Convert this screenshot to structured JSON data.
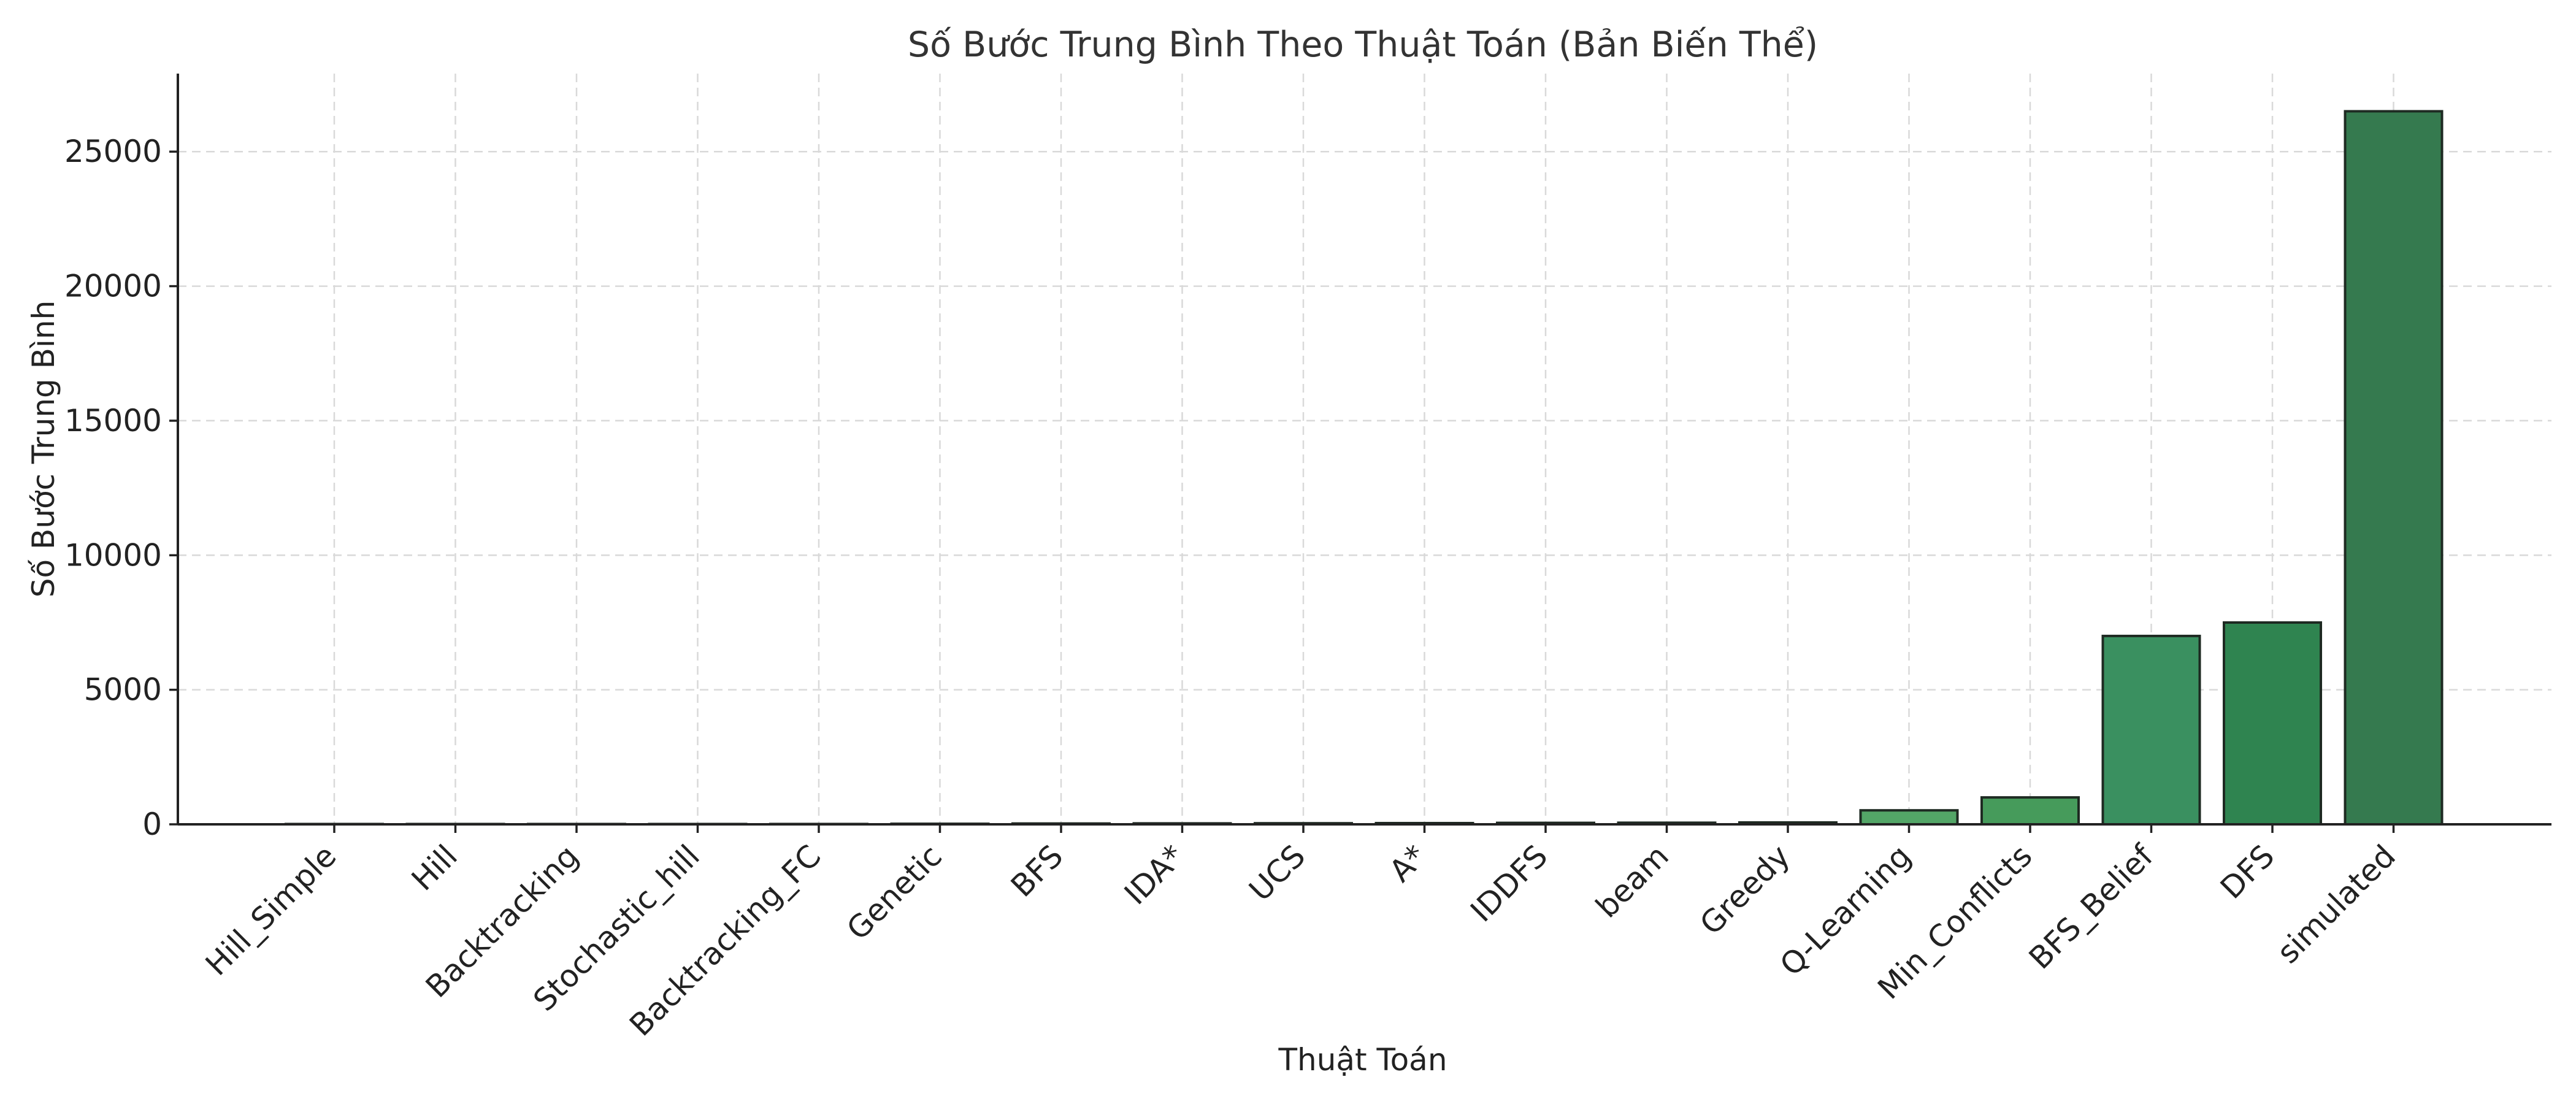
{
  "chart_data": {
    "type": "bar",
    "title": "Số Bước Trung Bình Theo Thuật Toán (Bản Biến Thể)",
    "xlabel": "Thuật Toán",
    "ylabel": "Số Bước Trung Bình",
    "categories": [
      "Hill_Simple",
      "Hill",
      "Backtracking",
      "Stochastic_hill",
      "Backtracking_FC",
      "Genetic",
      "BFS",
      "IDA*",
      "UCS",
      "A*",
      "IDDFS",
      "beam",
      "Greedy",
      "Q-Learning",
      "Min_Conflicts",
      "BFS_Belief",
      "DFS",
      "simulated"
    ],
    "values": [
      3,
      4,
      5,
      8,
      12,
      20,
      30,
      35,
      40,
      45,
      55,
      60,
      70,
      520,
      1000,
      7000,
      7500,
      26500
    ],
    "colors": [
      "#eef7f0",
      "#e9f5ec",
      "#e3f2e7",
      "#dcefe1",
      "#d3ebd9",
      "#c8e6cf",
      "#bde0c5",
      "#b0dab9",
      "#a2d3ac",
      "#93cb9e",
      "#83c290",
      "#73b982",
      "#63b074",
      "#53a667",
      "#469b5b",
      "#3a9060",
      "#2f8450",
      "#357a4f"
    ],
    "yticks": [
      0,
      5000,
      10000,
      15000,
      20000,
      25000
    ],
    "ylim": [
      0,
      27900
    ],
    "grid": true,
    "legend": "none"
  }
}
